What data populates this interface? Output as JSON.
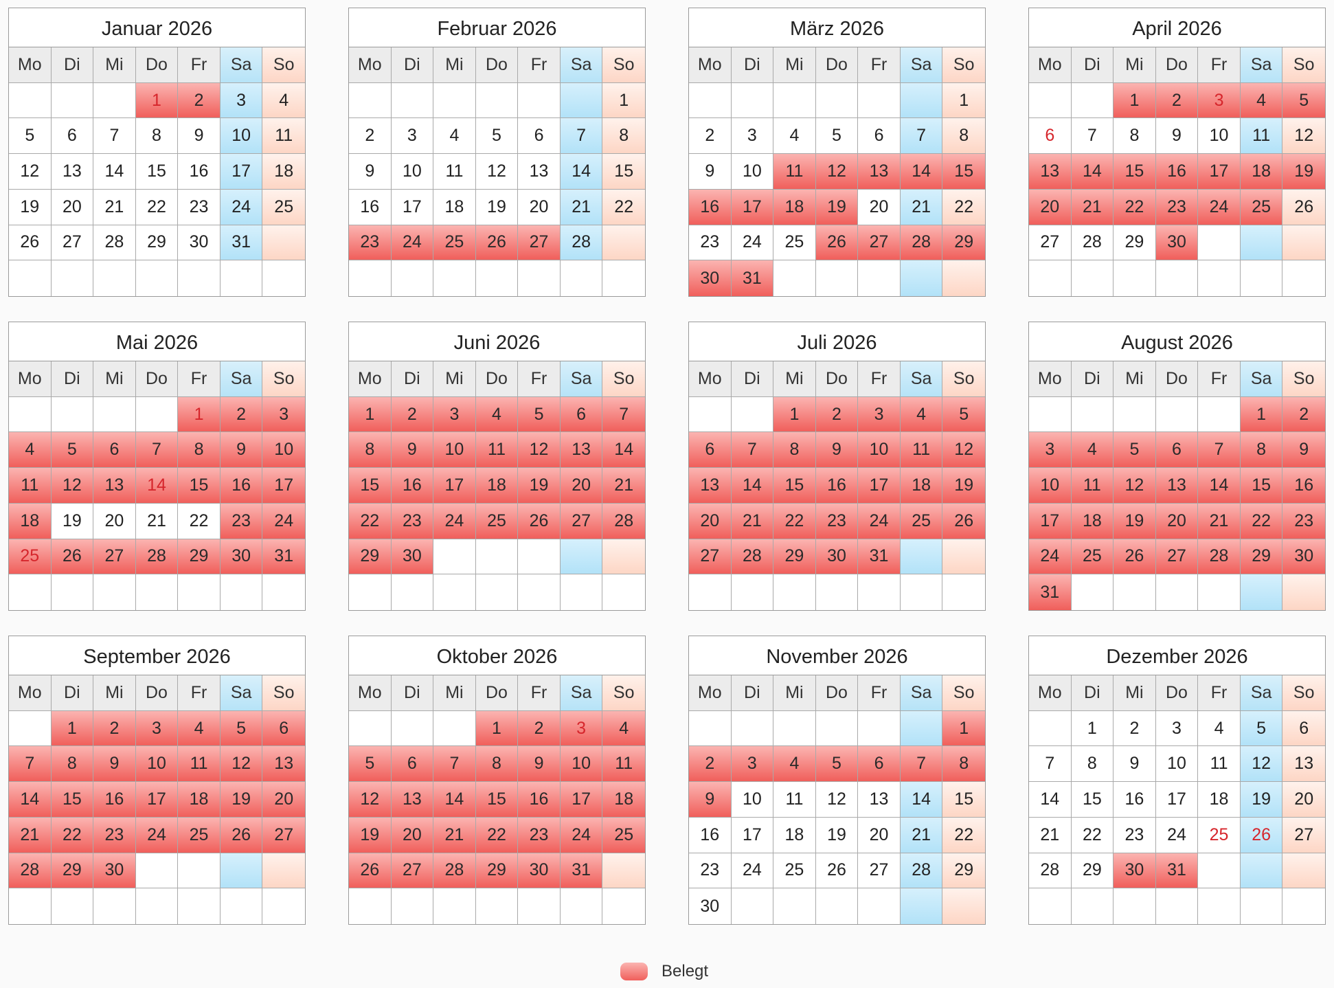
{
  "weekdays": [
    "Mo",
    "Di",
    "Mi",
    "Do",
    "Fr",
    "Sa",
    "So"
  ],
  "year": 2026,
  "months": [
    {
      "title": "Januar 2026",
      "month": 1,
      "booked": [
        1,
        2
      ],
      "holidays": [
        1
      ]
    },
    {
      "title": "Februar 2026",
      "month": 2,
      "booked": [
        23,
        24,
        25,
        26,
        27
      ],
      "holidays": []
    },
    {
      "title": "März 2026",
      "month": 3,
      "booked": [
        11,
        12,
        13,
        14,
        15,
        16,
        17,
        18,
        19,
        26,
        27,
        28,
        29,
        30,
        31
      ],
      "holidays": []
    },
    {
      "title": "April 2026",
      "month": 4,
      "booked": [
        1,
        2,
        3,
        4,
        5,
        13,
        14,
        15,
        16,
        17,
        18,
        19,
        20,
        21,
        22,
        23,
        24,
        25,
        30
      ],
      "holidays": [
        3,
        6
      ]
    },
    {
      "title": "Mai 2026",
      "month": 5,
      "booked": [
        1,
        2,
        3,
        4,
        5,
        6,
        7,
        8,
        9,
        10,
        11,
        12,
        13,
        14,
        15,
        16,
        17,
        18,
        23,
        24,
        25,
        26,
        27,
        28,
        29,
        30,
        31
      ],
      "holidays": [
        1,
        14,
        25
      ]
    },
    {
      "title": "Juni 2026",
      "month": 6,
      "booked": [
        1,
        2,
        3,
        4,
        5,
        6,
        7,
        8,
        9,
        10,
        11,
        12,
        13,
        14,
        15,
        16,
        17,
        18,
        19,
        20,
        21,
        22,
        23,
        24,
        25,
        26,
        27,
        28,
        29,
        30
      ],
      "holidays": []
    },
    {
      "title": "Juli 2026",
      "month": 7,
      "booked": [
        1,
        2,
        3,
        4,
        5,
        6,
        7,
        8,
        9,
        10,
        11,
        12,
        13,
        14,
        15,
        16,
        17,
        18,
        19,
        20,
        21,
        22,
        23,
        24,
        25,
        26,
        27,
        28,
        29,
        30,
        31
      ],
      "holidays": []
    },
    {
      "title": "August 2026",
      "month": 8,
      "booked": [
        1,
        2,
        3,
        4,
        5,
        6,
        7,
        8,
        9,
        10,
        11,
        12,
        13,
        14,
        15,
        16,
        17,
        18,
        19,
        20,
        21,
        22,
        23,
        24,
        25,
        26,
        27,
        28,
        29,
        30,
        31
      ],
      "holidays": []
    },
    {
      "title": "September 2026",
      "month": 9,
      "booked": [
        1,
        2,
        3,
        4,
        5,
        6,
        7,
        8,
        9,
        10,
        11,
        12,
        13,
        14,
        15,
        16,
        17,
        18,
        19,
        20,
        21,
        22,
        23,
        24,
        25,
        26,
        27,
        28,
        29,
        30
      ],
      "holidays": []
    },
    {
      "title": "Oktober 2026",
      "month": 10,
      "booked": [
        1,
        2,
        3,
        4,
        5,
        6,
        7,
        8,
        9,
        10,
        11,
        12,
        13,
        14,
        15,
        16,
        17,
        18,
        19,
        20,
        21,
        22,
        23,
        24,
        25,
        26,
        27,
        28,
        29,
        30,
        31
      ],
      "holidays": [
        3
      ]
    },
    {
      "title": "November 2026",
      "month": 11,
      "booked": [
        1,
        2,
        3,
        4,
        5,
        6,
        7,
        8,
        9
      ],
      "holidays": []
    },
    {
      "title": "Dezember 2026",
      "month": 12,
      "booked": [
        30,
        31
      ],
      "holidays": [
        25,
        26
      ]
    }
  ],
  "legend": {
    "label": "Belegt"
  },
  "colors": {
    "booked": "#f05f5b",
    "saturday": "#b2e2f8",
    "sunday": "#fdd6c5",
    "holiday_text": "#d6262c"
  }
}
